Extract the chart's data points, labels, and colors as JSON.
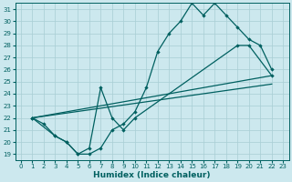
{
  "xlabel": "Humidex (Indice chaleur)",
  "bg_color": "#cce8ee",
  "grid_color": "#a8cdd4",
  "line_color": "#006060",
  "xlim": [
    -0.5,
    23.5
  ],
  "ylim": [
    18.5,
    31.5
  ],
  "xticks": [
    0,
    1,
    2,
    3,
    4,
    5,
    6,
    7,
    8,
    9,
    10,
    11,
    12,
    13,
    14,
    15,
    16,
    17,
    18,
    19,
    20,
    21,
    22,
    23
  ],
  "yticks": [
    19,
    20,
    21,
    22,
    23,
    24,
    25,
    26,
    27,
    28,
    29,
    30,
    31
  ],
  "line1_x": [
    1,
    2,
    3,
    4,
    5,
    6,
    7,
    8,
    9,
    10,
    11,
    12,
    13,
    14,
    15,
    16,
    17,
    18,
    19,
    20,
    21,
    22
  ],
  "line1_y": [
    22.0,
    21.5,
    20.5,
    20.0,
    19.0,
    19.0,
    19.5,
    21.0,
    21.5,
    22.5,
    24.5,
    27.5,
    29.0,
    30.0,
    31.5,
    30.5,
    31.5,
    30.5,
    29.5,
    28.5,
    28.0,
    26.0
  ],
  "line2_x": [
    1,
    3,
    4,
    5,
    6,
    7,
    8,
    9,
    10,
    19,
    20,
    22
  ],
  "line2_y": [
    22.0,
    20.5,
    20.0,
    19.0,
    19.5,
    24.5,
    22.0,
    21.0,
    22.0,
    28.0,
    28.0,
    25.5
  ],
  "line3_x": [
    1,
    22
  ],
  "line3_y": [
    22.0,
    25.5
  ],
  "line4_x": [
    1,
    22
  ],
  "line4_y": [
    22.0,
    24.8
  ]
}
